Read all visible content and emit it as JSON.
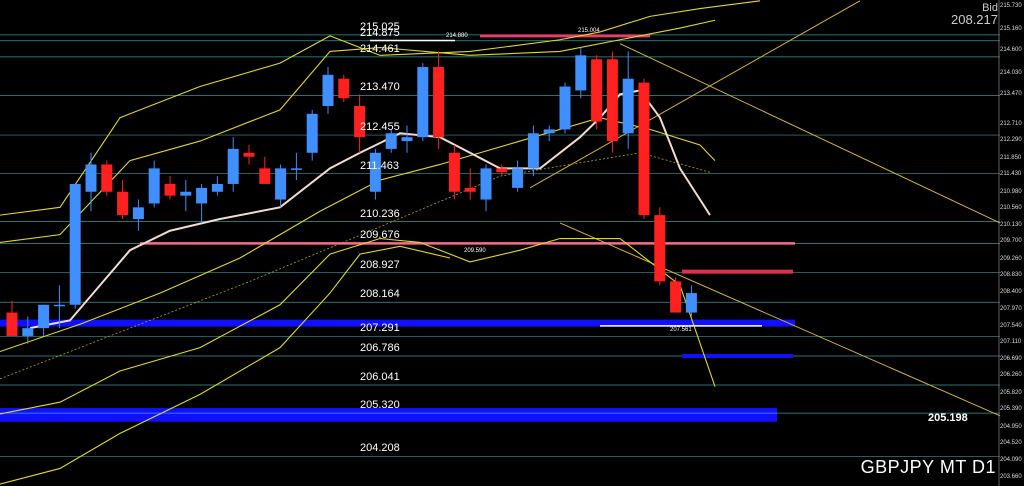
{
  "chart_data": {
    "type": "candlestick",
    "symbol": "GBPJPY",
    "timeframe": "MT D1",
    "symbol_label": "GBPJPY  MT D1",
    "bid_label": "Bid",
    "bid_value": "208.217",
    "ylim": [
      203.45,
      215.92
    ],
    "y_ticks": [
      "215.730",
      "215.160",
      "214.600",
      "214.030",
      "213.470",
      "212.710",
      "212.290",
      "211.850",
      "211.430",
      "210.980",
      "210.560",
      "210.130",
      "209.700",
      "209.260",
      "208.830",
      "208.400",
      "207.970",
      "207.540",
      "207.110",
      "206.690",
      "206.260",
      "205.820",
      "205.390",
      "204.950",
      "204.520",
      "204.090",
      "203.660"
    ],
    "levels": [
      {
        "label": "215.025",
        "value": 215.025,
        "color": "#4fc9c9"
      },
      {
        "label": "214.875",
        "value": 214.875,
        "color": "#4fc9c9"
      },
      {
        "label": "214.461",
        "value": 214.461,
        "color": "#4fc9c9"
      },
      {
        "label": "213.470",
        "value": 213.47,
        "color": "#4fc9c9"
      },
      {
        "label": "212.455",
        "value": 212.455,
        "color": "#4fc9c9"
      },
      {
        "label": "211.463",
        "value": 211.463,
        "color": "#4fc9c9"
      },
      {
        "label": "210.236",
        "value": 210.236,
        "color": "#4fc9c9"
      },
      {
        "label": "209.676",
        "value": 209.676,
        "color": "#4fc9c9"
      },
      {
        "label": "208.927",
        "value": 208.927,
        "color": "#4fc9c9"
      },
      {
        "label": "208.164",
        "value": 208.164,
        "color": "#4fc9c9"
      },
      {
        "label": "207.291",
        "value": 207.291,
        "color": "#4fc9c9"
      },
      {
        "label": "206.786",
        "value": 206.786,
        "color": "#4fc9c9"
      },
      {
        "label": "206.041",
        "value": 206.041,
        "color": "#4fc9c9"
      },
      {
        "label": "205.320",
        "value": 205.32,
        "color": "#4fc9c9"
      },
      {
        "label": "204.208",
        "value": 204.208,
        "color": "#4fc9c9"
      }
    ],
    "zones": [
      {
        "from": 207.54,
        "to": 207.72,
        "color": "#1010ff"
      },
      {
        "from": 205.1,
        "to": 205.45,
        "color": "#1010ff"
      }
    ],
    "marked_values": [
      "214.880",
      "215.004",
      "209.590",
      "207.561",
      "205.198"
    ],
    "candles": [
      {
        "o": 207.9,
        "h": 208.2,
        "l": 207.3,
        "c": 207.3
      },
      {
        "o": 207.3,
        "h": 207.8,
        "l": 207.1,
        "c": 207.5
      },
      {
        "o": 207.5,
        "h": 208.1,
        "l": 207.3,
        "c": 208.1
      },
      {
        "o": 208.1,
        "h": 208.6,
        "l": 207.5,
        "c": 208.1
      },
      {
        "o": 208.1,
        "h": 211.2,
        "l": 208.0,
        "c": 211.2
      },
      {
        "o": 211.0,
        "h": 212.0,
        "l": 210.5,
        "c": 211.7
      },
      {
        "o": 211.7,
        "h": 211.8,
        "l": 210.9,
        "c": 211.0
      },
      {
        "o": 211.0,
        "h": 211.3,
        "l": 210.3,
        "c": 210.4
      },
      {
        "o": 210.3,
        "h": 210.8,
        "l": 210.0,
        "c": 210.6
      },
      {
        "o": 210.7,
        "h": 211.8,
        "l": 210.6,
        "c": 211.6
      },
      {
        "o": 211.2,
        "h": 211.4,
        "l": 210.8,
        "c": 210.9
      },
      {
        "o": 210.9,
        "h": 211.3,
        "l": 210.5,
        "c": 211.0
      },
      {
        "o": 210.7,
        "h": 211.2,
        "l": 210.2,
        "c": 211.1
      },
      {
        "o": 211.0,
        "h": 211.4,
        "l": 210.9,
        "c": 211.2
      },
      {
        "o": 211.2,
        "h": 212.4,
        "l": 211.0,
        "c": 212.1
      },
      {
        "o": 212.0,
        "h": 212.2,
        "l": 211.7,
        "c": 211.9
      },
      {
        "o": 211.6,
        "h": 211.9,
        "l": 211.2,
        "c": 211.2
      },
      {
        "o": 210.8,
        "h": 211.7,
        "l": 210.6,
        "c": 211.6
      },
      {
        "o": 211.6,
        "h": 212.0,
        "l": 211.3,
        "c": 211.6
      },
      {
        "o": 212.0,
        "h": 213.1,
        "l": 211.8,
        "c": 213.0
      },
      {
        "o": 213.2,
        "h": 214.2,
        "l": 213.0,
        "c": 214.0
      },
      {
        "o": 213.9,
        "h": 214.0,
        "l": 213.3,
        "c": 213.4
      },
      {
        "o": 213.2,
        "h": 213.5,
        "l": 212.0,
        "c": 212.4
      },
      {
        "o": 211.0,
        "h": 212.1,
        "l": 210.8,
        "c": 212.0
      },
      {
        "o": 212.1,
        "h": 212.6,
        "l": 212.0,
        "c": 212.5
      },
      {
        "o": 212.3,
        "h": 212.7,
        "l": 212.0,
        "c": 212.4
      },
      {
        "o": 212.4,
        "h": 214.3,
        "l": 212.3,
        "c": 214.2
      },
      {
        "o": 214.2,
        "h": 214.6,
        "l": 212.1,
        "c": 212.4
      },
      {
        "o": 212.0,
        "h": 212.2,
        "l": 210.8,
        "c": 211.0
      },
      {
        "o": 211.1,
        "h": 211.6,
        "l": 210.8,
        "c": 211.0
      },
      {
        "o": 210.8,
        "h": 211.7,
        "l": 210.5,
        "c": 211.6
      },
      {
        "o": 211.6,
        "h": 211.7,
        "l": 211.4,
        "c": 211.5
      },
      {
        "o": 211.1,
        "h": 211.8,
        "l": 211.0,
        "c": 211.6
      },
      {
        "o": 211.6,
        "h": 212.7,
        "l": 211.4,
        "c": 212.5
      },
      {
        "o": 212.5,
        "h": 212.7,
        "l": 212.3,
        "c": 212.6
      },
      {
        "o": 212.6,
        "h": 213.8,
        "l": 212.5,
        "c": 213.7
      },
      {
        "o": 213.6,
        "h": 214.7,
        "l": 213.4,
        "c": 214.5
      },
      {
        "o": 214.4,
        "h": 214.5,
        "l": 212.6,
        "c": 212.8
      },
      {
        "o": 214.4,
        "h": 214.6,
        "l": 212.0,
        "c": 212.3
      },
      {
        "o": 212.5,
        "h": 214.6,
        "l": 212.1,
        "c": 213.9
      },
      {
        "o": 213.8,
        "h": 213.9,
        "l": 210.3,
        "c": 210.4
      },
      {
        "o": 210.4,
        "h": 210.6,
        "l": 208.6,
        "c": 208.7
      },
      {
        "o": 208.7,
        "h": 208.8,
        "l": 207.9,
        "c": 207.9
      },
      {
        "o": 207.9,
        "h": 208.6,
        "l": 207.8,
        "c": 208.4
      }
    ]
  }
}
